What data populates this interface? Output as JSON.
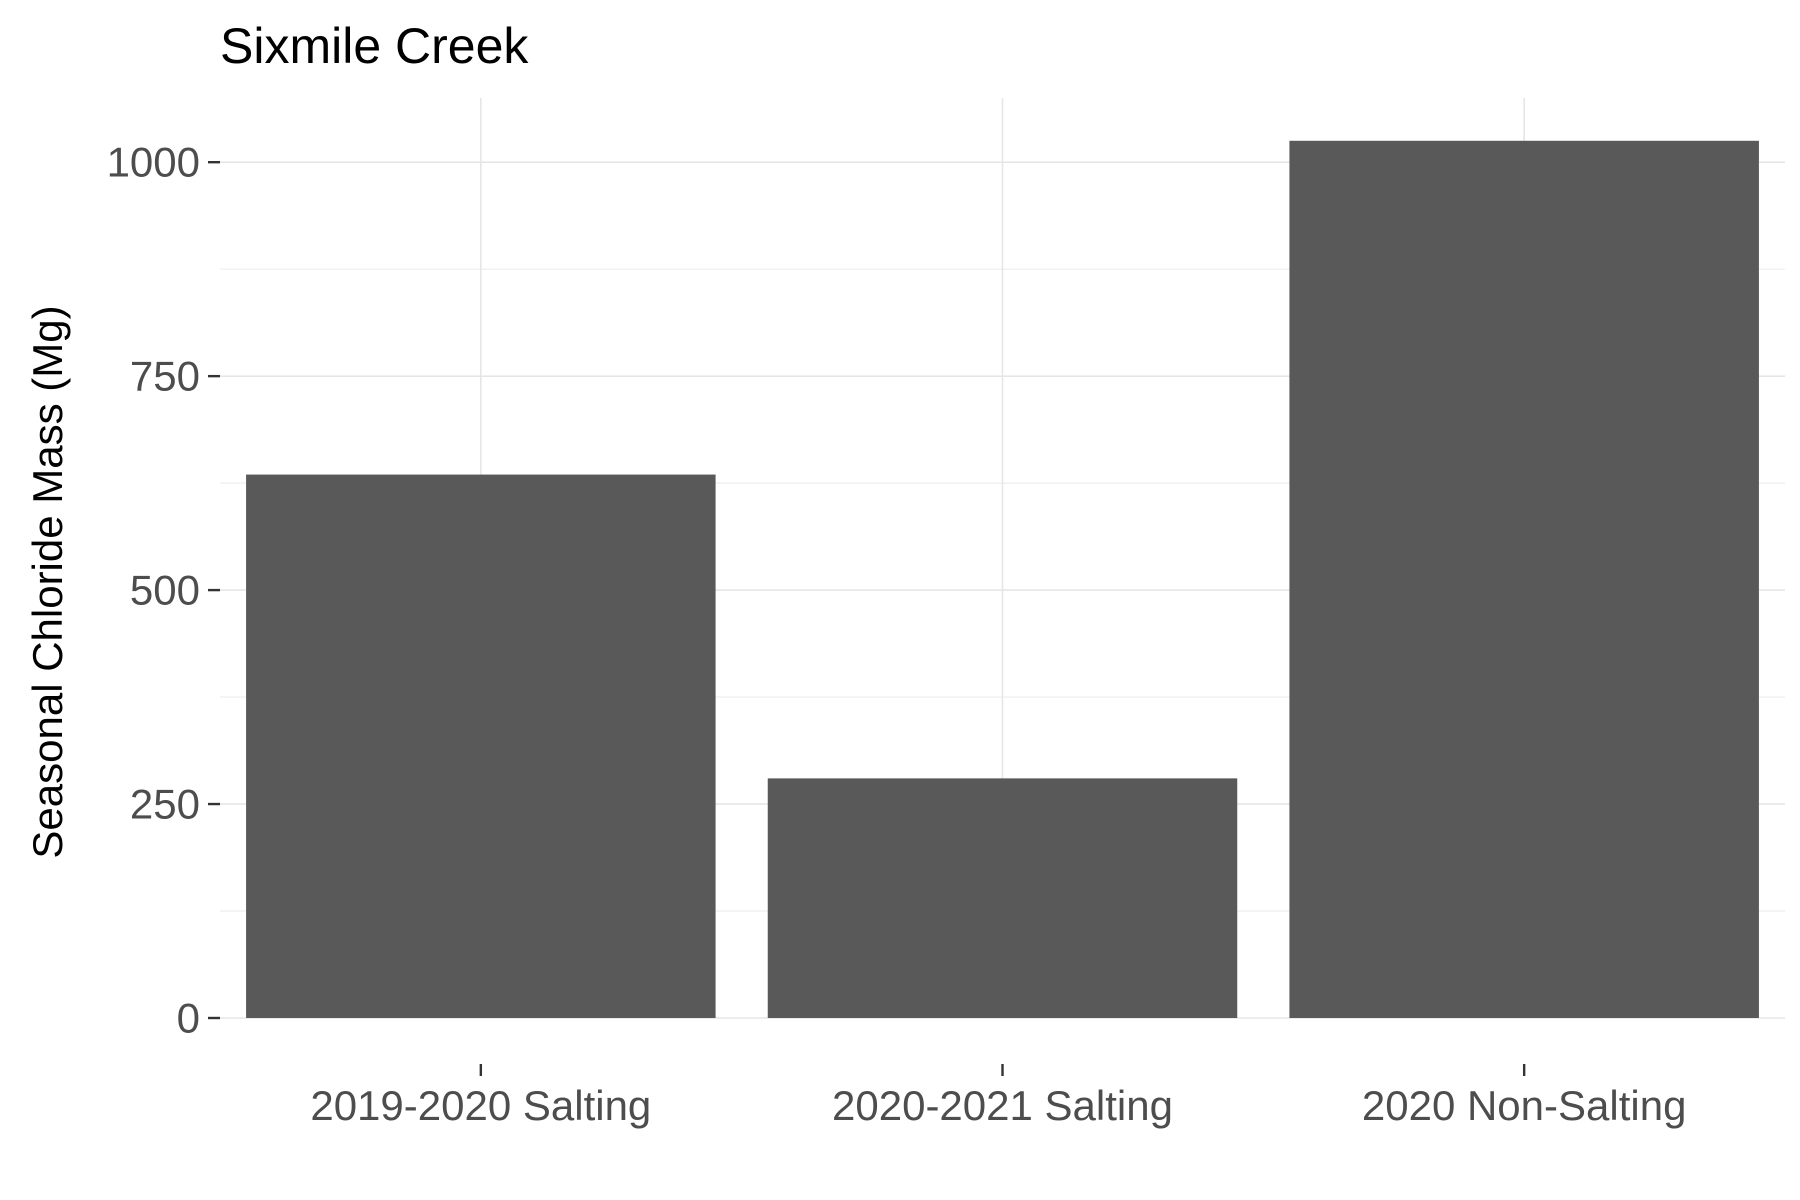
{
  "chart_data": {
    "type": "bar",
    "title": "Sixmile Creek",
    "xlabel": "",
    "ylabel": "Seasonal Chloride Mass (Mg)",
    "categories": [
      "2019-2020 Salting",
      "2020-2021 Salting",
      "2020 Non-Salting"
    ],
    "values": [
      635,
      280,
      1025
    ],
    "ylim": [
      0,
      1075
    ],
    "yticks": [
      0,
      250,
      500,
      750,
      1000
    ],
    "ytick_labels": [
      "0",
      "250",
      "500",
      "750",
      "1000"
    ],
    "grid": true,
    "bar_color": "#595959"
  }
}
